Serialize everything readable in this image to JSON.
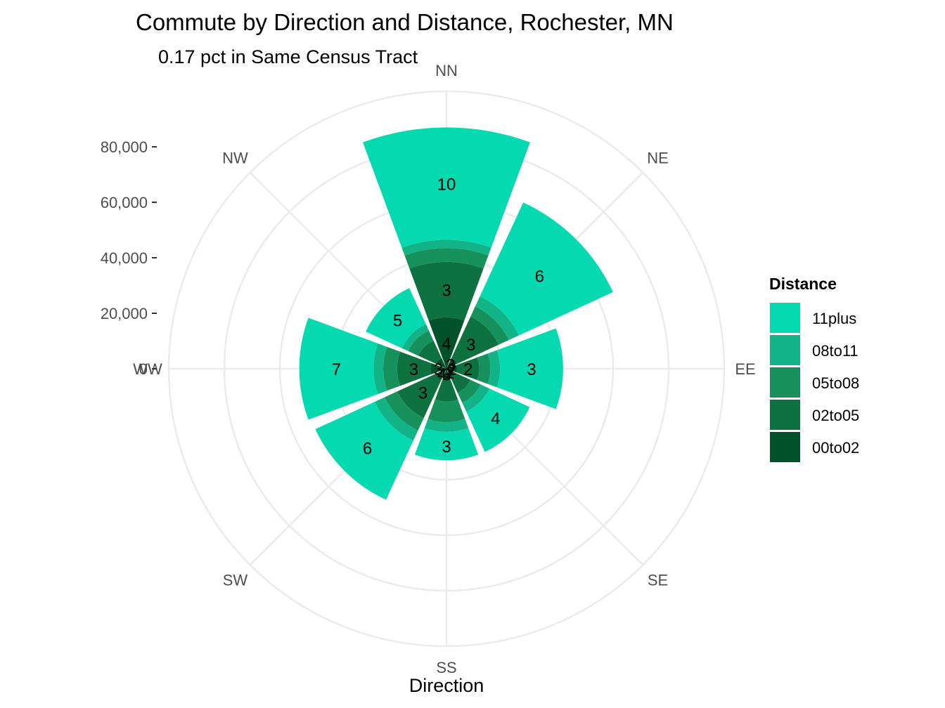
{
  "chart_data": {
    "type": "bar",
    "coord": "polar",
    "title": "Commute by Direction and Distance, Rochester, MN",
    "subtitle": "0.17 pct in Same Census Tract",
    "xlabel": "Direction",
    "ylim": [
      0,
      100000
    ],
    "y_ticks": [
      0,
      20000,
      40000,
      60000,
      80000
    ],
    "y_tick_labels": [
      "0",
      "20,000",
      "40,000",
      "60,000",
      "80,000"
    ],
    "categories": [
      "NN",
      "NE",
      "EE",
      "SE",
      "SS",
      "SW",
      "WW",
      "NW"
    ],
    "legend": {
      "title": "Distance",
      "placement": "right",
      "entries": [
        "11plus",
        "08to11",
        "05to08",
        "02to05",
        "00to02"
      ]
    },
    "series": [
      {
        "name": "00to02",
        "color": "#00522b",
        "values": [
          18500,
          4200,
          3800,
          3500,
          3800,
          4500,
          5800,
          4200
        ]
      },
      {
        "name": "02to05",
        "color": "#0e7240",
        "values": [
          20000,
          16500,
          8000,
          6000,
          8000,
          15000,
          12000,
          7000
        ]
      },
      {
        "name": "05to08",
        "color": "#17915c",
        "values": [
          5000,
          4000,
          4000,
          4000,
          7500,
          5000,
          5000,
          4000
        ]
      },
      {
        "name": "08to11",
        "color": "#12b386",
        "values": [
          3000,
          4000,
          3500,
          3500,
          3500,
          4000,
          3500,
          2500
        ]
      },
      {
        "name": "11plus",
        "color": "#04d9b0",
        "values": [
          40500,
          37300,
          22700,
          16000,
          10200,
          23500,
          26700,
          14300
        ]
      }
    ],
    "bar_labels": [
      {
        "direction": "NN",
        "series": "00to02",
        "label": "4"
      },
      {
        "direction": "NN",
        "series": "02to05",
        "label": "3"
      },
      {
        "direction": "NN",
        "series": "11plus",
        "label": "10"
      },
      {
        "direction": "NE",
        "series": "00to02",
        "label": "3"
      },
      {
        "direction": "NE",
        "series": "02to05",
        "label": "3"
      },
      {
        "direction": "NE",
        "series": "11plus",
        "label": "6"
      },
      {
        "direction": "EE",
        "series": "00to02",
        "label": "2"
      },
      {
        "direction": "EE",
        "series": "02to05",
        "label": "2"
      },
      {
        "direction": "EE",
        "series": "11plus",
        "label": "3"
      },
      {
        "direction": "SE",
        "series": "00to02",
        "label": "2"
      },
      {
        "direction": "SE",
        "series": "11plus",
        "label": "4"
      },
      {
        "direction": "SS",
        "series": "00to02",
        "label": "3"
      },
      {
        "direction": "SS",
        "series": "11plus",
        "label": "3"
      },
      {
        "direction": "SW",
        "series": "00to02",
        "label": "4"
      },
      {
        "direction": "SW",
        "series": "02to05",
        "label": "3"
      },
      {
        "direction": "SW",
        "series": "11plus",
        "label": "6"
      },
      {
        "direction": "WW",
        "series": "00to02",
        "label": "3"
      },
      {
        "direction": "WW",
        "series": "02to05",
        "label": "3"
      },
      {
        "direction": "WW",
        "series": "11plus",
        "label": "7"
      },
      {
        "direction": "NW",
        "series": "11plus",
        "label": "5"
      }
    ]
  }
}
